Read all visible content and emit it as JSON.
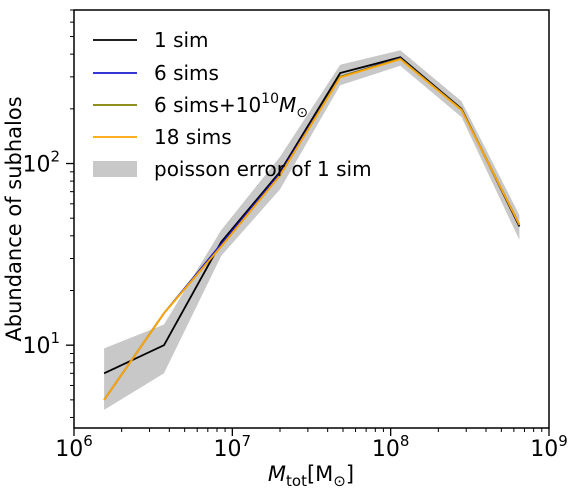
{
  "chart_data": {
    "type": "line",
    "xscale": "log",
    "yscale": "log",
    "xlim": [
      1000000,
      1000000000
    ],
    "ylim": [
      3.5,
      700
    ],
    "xlabel_main": "M",
    "xlabel_sub": "tot",
    "xlabel_unit_open": "[M",
    "xlabel_unit_sub": "⊙",
    "xlabel_unit_close": "]",
    "ylabel": "Abundance of subhalos",
    "x_ticks": [
      {
        "value": 1000000,
        "base": "10",
        "exp": "6"
      },
      {
        "value": 10000000,
        "base": "10",
        "exp": "7"
      },
      {
        "value": 100000000,
        "base": "10",
        "exp": "8"
      },
      {
        "value": 1000000000,
        "base": "10",
        "exp": "9"
      }
    ],
    "y_ticks": [
      {
        "value": 10,
        "base": "10",
        "exp": "1"
      },
      {
        "value": 100,
        "base": "10",
        "exp": "2"
      }
    ],
    "x": [
      1550000,
      3700000,
      8500000,
      20000000,
      48000000,
      115000000,
      280000000,
      650000000
    ],
    "series": [
      {
        "name": "1 sim",
        "color": "#000000",
        "values": [
          7,
          10,
          37,
          90,
          315,
          385,
          200,
          45
        ]
      },
      {
        "name": "6 sims",
        "color": "#1a1acc",
        "values": [
          5,
          15,
          36,
          88,
          300,
          380,
          198,
          46
        ]
      },
      {
        "name_main": "6 sims+10",
        "name_sup": "10",
        "name_m": "M",
        "name_sub": "⊙",
        "color": "#808000",
        "values": [
          5,
          15,
          35,
          86,
          300,
          378,
          198,
          46
        ]
      },
      {
        "name": "18 sims",
        "color": "#ffa500",
        "values": [
          5,
          15,
          35,
          86,
          298,
          375,
          197,
          46
        ]
      }
    ],
    "band": {
      "name": "poisson error of 1 sim",
      "color": "#c8c8c8",
      "lower": [
        4.4,
        7,
        31,
        72,
        270,
        345,
        180,
        38
      ],
      "upper": [
        9.6,
        13,
        43,
        109,
        350,
        420,
        220,
        52
      ]
    },
    "legend_position": "top-left",
    "grid": false
  }
}
